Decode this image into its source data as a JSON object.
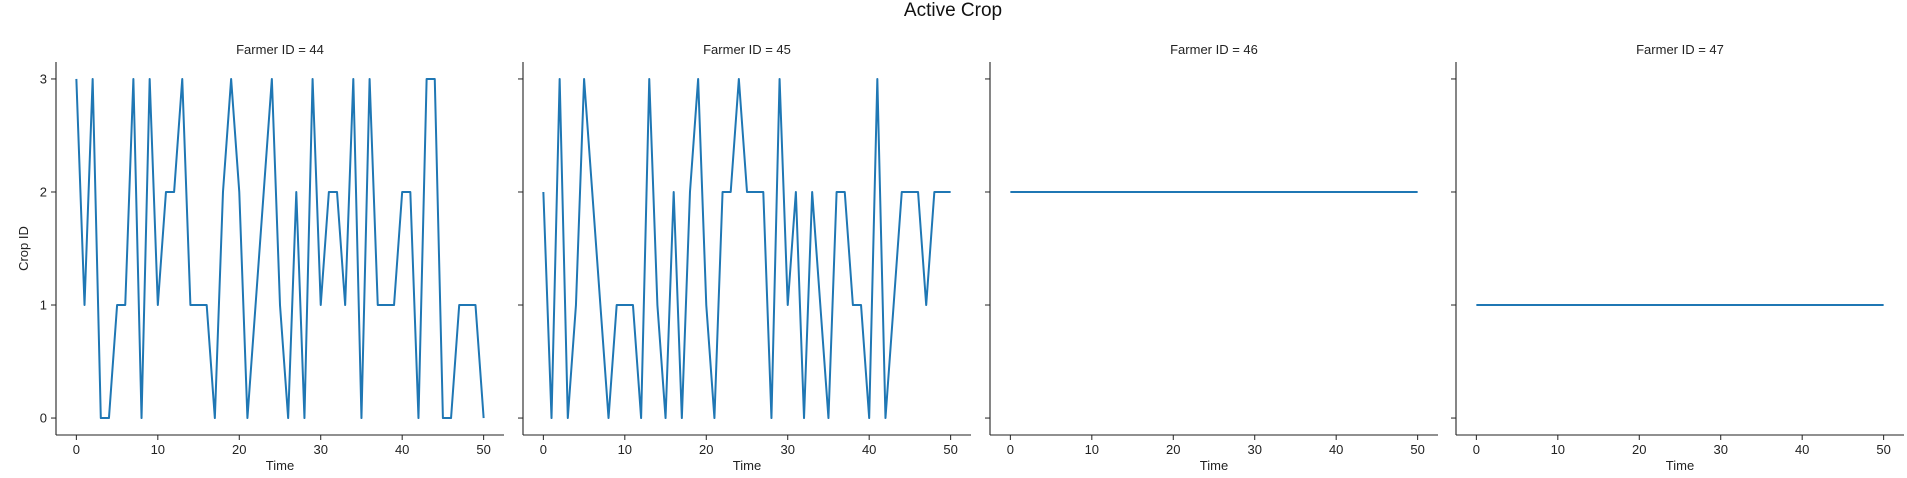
{
  "figure": {
    "title": "Active Crop",
    "line_color": "#1f77b4"
  },
  "chart_data": [
    {
      "type": "line",
      "title": "Farmer ID = 44",
      "xlabel": "Time",
      "ylabel": "Crop ID",
      "xlim": [
        -2.5,
        52.5
      ],
      "ylim": [
        -0.15,
        3.15
      ],
      "xticks": [
        0,
        10,
        20,
        30,
        40,
        50
      ],
      "yticks": [
        0,
        1,
        2,
        3
      ],
      "x": [
        0,
        1,
        2,
        3,
        4,
        5,
        6,
        7,
        8,
        9,
        10,
        11,
        12,
        13,
        14,
        15,
        16,
        17,
        18,
        19,
        20,
        21,
        22,
        23,
        24,
        25,
        26,
        27,
        28,
        29,
        30,
        31,
        32,
        33,
        34,
        35,
        36,
        37,
        38,
        39,
        40,
        41,
        42,
        43,
        44,
        45,
        46,
        47,
        48,
        49,
        50
      ],
      "y": [
        3,
        1,
        3,
        0,
        0,
        1,
        1,
        3,
        0,
        3,
        1,
        2,
        2,
        3,
        1,
        1,
        1,
        0,
        2,
        3,
        2,
        0,
        1,
        2,
        3,
        1,
        0,
        2,
        0,
        3,
        1,
        2,
        2,
        1,
        3,
        0,
        3,
        1,
        1,
        1,
        2,
        2,
        0,
        3,
        3,
        0,
        0,
        1,
        1,
        1,
        0
      ]
    },
    {
      "type": "line",
      "title": "Farmer ID = 45",
      "xlabel": "Time",
      "ylabel": "",
      "xlim": [
        -2.5,
        52.5
      ],
      "ylim": [
        -0.15,
        3.15
      ],
      "xticks": [
        0,
        10,
        20,
        30,
        40,
        50
      ],
      "yticks": [
        0,
        1,
        2,
        3
      ],
      "x": [
        0,
        1,
        2,
        3,
        4,
        5,
        6,
        7,
        8,
        9,
        10,
        11,
        12,
        13,
        14,
        15,
        16,
        17,
        18,
        19,
        20,
        21,
        22,
        23,
        24,
        25,
        26,
        27,
        28,
        29,
        30,
        31,
        32,
        33,
        34,
        35,
        36,
        37,
        38,
        39,
        40,
        41,
        42,
        43,
        44,
        45,
        46,
        47,
        48,
        49,
        50
      ],
      "y": [
        2,
        0,
        3,
        0,
        1,
        3,
        2,
        1,
        0,
        1,
        1,
        1,
        0,
        3,
        1,
        0,
        2,
        0,
        2,
        3,
        1,
        0,
        2,
        2,
        3,
        2,
        2,
        2,
        0,
        3,
        1,
        2,
        0,
        2,
        1,
        0,
        2,
        2,
        1,
        1,
        0,
        3,
        0,
        1,
        2,
        2,
        2,
        1,
        2,
        2,
        2
      ]
    },
    {
      "type": "line",
      "title": "Farmer ID = 46",
      "xlabel": "Time",
      "ylabel": "",
      "xlim": [
        -2.5,
        52.5
      ],
      "ylim": [
        -0.15,
        3.15
      ],
      "xticks": [
        0,
        10,
        20,
        30,
        40,
        50
      ],
      "yticks": [
        0,
        1,
        2,
        3
      ],
      "x": [
        0,
        50
      ],
      "y": [
        2,
        2
      ]
    },
    {
      "type": "line",
      "title": "Farmer ID = 47",
      "xlabel": "Time",
      "ylabel": "",
      "xlim": [
        -2.5,
        52.5
      ],
      "ylim": [
        -0.15,
        3.15
      ],
      "xticks": [
        0,
        10,
        20,
        30,
        40,
        50
      ],
      "yticks": [
        0,
        1,
        2,
        3
      ],
      "x": [
        0,
        50
      ],
      "y": [
        1,
        1
      ]
    }
  ]
}
